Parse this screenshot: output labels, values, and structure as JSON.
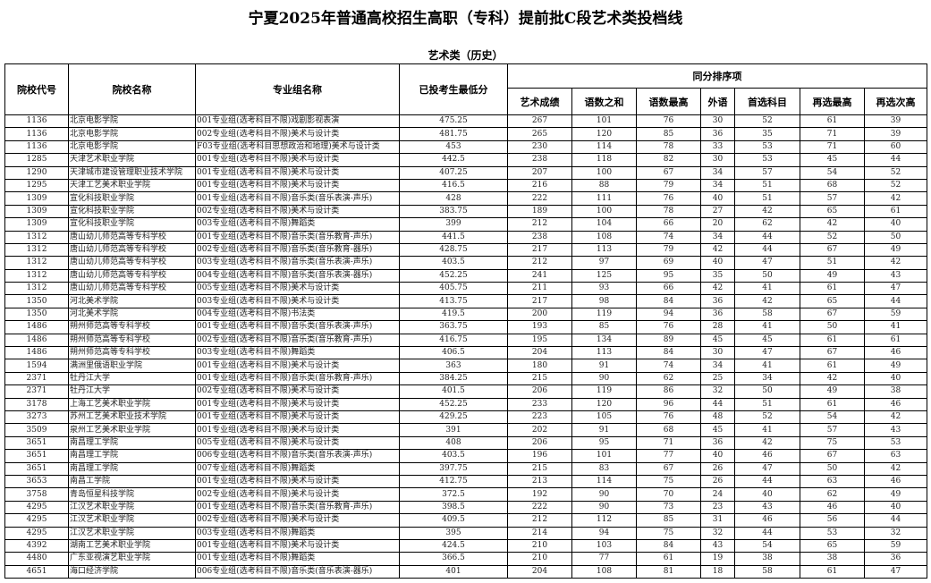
{
  "title": "宁夏2025年普通高校招生高职（专科）提前批C段艺术类投档线",
  "subtitle": "艺术类（历史）",
  "headers": {
    "code": "院校代号",
    "school": "院校名称",
    "group": "专业组名称",
    "min_score": "已投考生最低分",
    "tie_break": "同分排序项",
    "art": "艺术成绩",
    "yushu_sum": "语数之和",
    "yushu_max": "语数最高",
    "foreign": "外语",
    "first_subject": "首选科目",
    "reselect_max": "再选最高",
    "reselect_second": "再选次高"
  },
  "rows": [
    [
      "1136",
      "北京电影学院",
      "001专业组(选考科目不限)戏剧影视表演",
      "475.25",
      "267",
      "101",
      "76",
      "30",
      "52",
      "61",
      "39"
    ],
    [
      "1136",
      "北京电影学院",
      "002专业组(选考科目不限)美术与设计类",
      "481.75",
      "265",
      "120",
      "85",
      "36",
      "35",
      "71",
      "39"
    ],
    [
      "1136",
      "北京电影学院",
      "F03专业组(选考科目思想政治和地理)美术与设计类",
      "453",
      "230",
      "114",
      "78",
      "33",
      "53",
      "71",
      "60"
    ],
    [
      "1285",
      "天津艺术职业学院",
      "001专业组(选考科目不限)美术与设计类",
      "442.5",
      "238",
      "118",
      "82",
      "30",
      "53",
      "45",
      "44"
    ],
    [
      "1290",
      "天津城市建设管理职业技术学院",
      "001专业组(选考科目不限)美术与设计类",
      "407.25",
      "207",
      "100",
      "67",
      "34",
      "57",
      "54",
      "52"
    ],
    [
      "1295",
      "天津工艺美术职业学院",
      "001专业组(选考科目不限)美术与设计类",
      "416.5",
      "216",
      "88",
      "79",
      "34",
      "51",
      "68",
      "52"
    ],
    [
      "1309",
      "宣化科技职业学院",
      "001专业组(选考科目不限)音乐类(音乐表演-声乐)",
      "428",
      "222",
      "111",
      "76",
      "40",
      "51",
      "57",
      "42"
    ],
    [
      "1309",
      "宣化科技职业学院",
      "002专业组(选考科目不限)美术与设计类",
      "383.75",
      "189",
      "100",
      "78",
      "27",
      "42",
      "65",
      "61"
    ],
    [
      "1309",
      "宣化科技职业学院",
      "003专业组(选考科目不限)舞蹈类",
      "399",
      "212",
      "104",
      "66",
      "20",
      "62",
      "42",
      "40"
    ],
    [
      "1312",
      "唐山幼儿师范高等专科学校",
      "001专业组(选考科目不限)音乐类(音乐教育-声乐)",
      "441.5",
      "238",
      "108",
      "74",
      "34",
      "44",
      "52",
      "50"
    ],
    [
      "1312",
      "唐山幼儿师范高等专科学校",
      "002专业组(选考科目不限)音乐类(音乐教育-器乐)",
      "428.75",
      "217",
      "113",
      "79",
      "42",
      "44",
      "67",
      "49"
    ],
    [
      "1312",
      "唐山幼儿师范高等专科学校",
      "003专业组(选考科目不限)音乐类(音乐表演-声乐)",
      "403.5",
      "212",
      "97",
      "69",
      "40",
      "47",
      "51",
      "42"
    ],
    [
      "1312",
      "唐山幼儿师范高等专科学校",
      "004专业组(选考科目不限)音乐类(音乐表演-器乐)",
      "452.25",
      "241",
      "125",
      "95",
      "35",
      "50",
      "49",
      "43"
    ],
    [
      "1312",
      "唐山幼儿师范高等专科学校",
      "005专业组(选考科目不限)美术与设计类",
      "405.75",
      "211",
      "93",
      "66",
      "42",
      "41",
      "61",
      "47"
    ],
    [
      "1350",
      "河北美术学院",
      "003专业组(选考科目不限)美术与设计类",
      "413.75",
      "217",
      "98",
      "84",
      "36",
      "42",
      "65",
      "44"
    ],
    [
      "1350",
      "河北美术学院",
      "004专业组(选考科目不限)书法类",
      "419.5",
      "200",
      "119",
      "94",
      "36",
      "58",
      "67",
      "59"
    ],
    [
      "1486",
      "朔州师范高等专科学校",
      "001专业组(选考科目不限)音乐类(音乐表演-声乐)",
      "363.75",
      "193",
      "85",
      "76",
      "28",
      "41",
      "50",
      "41"
    ],
    [
      "1486",
      "朔州师范高等专科学校",
      "002专业组(选考科目不限)音乐类(音乐教育-声乐)",
      "416.75",
      "195",
      "134",
      "89",
      "45",
      "45",
      "61",
      "61"
    ],
    [
      "1486",
      "朔州师范高等专科学校",
      "003专业组(选考科目不限)舞蹈类",
      "406.5",
      "204",
      "113",
      "84",
      "30",
      "47",
      "67",
      "46"
    ],
    [
      "1594",
      "满洲里俄语职业学院",
      "001专业组(选考科目不限)美术与设计类",
      "363",
      "180",
      "91",
      "74",
      "34",
      "41",
      "61",
      "49"
    ],
    [
      "2371",
      "牡丹江大学",
      "001专业组(选考科目不限)音乐类(音乐教育-声乐)",
      "384.25",
      "215",
      "90",
      "62",
      "25",
      "34",
      "42",
      "40"
    ],
    [
      "2371",
      "牡丹江大学",
      "002专业组(选考科目不限)美术与设计类",
      "401.5",
      "206",
      "119",
      "86",
      "32",
      "50",
      "49",
      "38"
    ],
    [
      "3178",
      "上海工艺美术职业学院",
      "001专业组(选考科目不限)美术与设计类",
      "452.25",
      "233",
      "120",
      "96",
      "44",
      "51",
      "61",
      "46"
    ],
    [
      "3273",
      "苏州工艺美术职业技术学院",
      "001专业组(选考科目不限)美术与设计类",
      "429.25",
      "223",
      "105",
      "76",
      "48",
      "52",
      "54",
      "42"
    ],
    [
      "3509",
      "泉州工艺美术职业学院",
      "001专业组(选考科目不限)美术与设计类",
      "391",
      "202",
      "91",
      "68",
      "45",
      "41",
      "57",
      "43"
    ],
    [
      "3651",
      "南昌理工学院",
      "005专业组(选考科目不限)美术与设计类",
      "408",
      "206",
      "95",
      "71",
      "36",
      "42",
      "75",
      "53"
    ],
    [
      "3651",
      "南昌理工学院",
      "006专业组(选考科目不限)音乐类(音乐表演-声乐)",
      "403.5",
      "196",
      "101",
      "77",
      "40",
      "46",
      "67",
      "63"
    ],
    [
      "3651",
      "南昌理工学院",
      "007专业组(选考科目不限)舞蹈类",
      "397.75",
      "215",
      "83",
      "67",
      "26",
      "47",
      "50",
      "42"
    ],
    [
      "3653",
      "南昌工学院",
      "001专业组(选考科目不限)美术与设计类",
      "412.75",
      "213",
      "114",
      "75",
      "26",
      "44",
      "63",
      "46"
    ],
    [
      "3758",
      "青岛恒星科技学院",
      "002专业组(选考科目不限)美术与设计类",
      "372.5",
      "192",
      "90",
      "70",
      "24",
      "40",
      "62",
      "49"
    ],
    [
      "4295",
      "江汉艺术职业学院",
      "001专业组(选考科目不限)音乐类(音乐教育-声乐)",
      "398.5",
      "222",
      "90",
      "73",
      "23",
      "43",
      "46",
      "40"
    ],
    [
      "4295",
      "江汉艺术职业学院",
      "002专业组(选考科目不限)美术与设计类",
      "409.5",
      "212",
      "112",
      "85",
      "31",
      "46",
      "56",
      "44"
    ],
    [
      "4295",
      "江汉艺术职业学院",
      "003专业组(选考科目不限)舞蹈类",
      "395",
      "214",
      "94",
      "75",
      "32",
      "44",
      "53",
      "32"
    ],
    [
      "4392",
      "湖南工艺美术职业学院",
      "001专业组(选考科目不限)美术与设计类",
      "424.5",
      "210",
      "103",
      "84",
      "43",
      "54",
      "65",
      "59"
    ],
    [
      "4480",
      "广东亚视演艺职业学院",
      "001专业组(选考科目不限)舞蹈类",
      "366.5",
      "210",
      "77",
      "61",
      "19",
      "38",
      "38",
      "36"
    ],
    [
      "4651",
      "海口经济学院",
      "006专业组(选考科目不限)音乐类(音乐表演-器乐)",
      "401",
      "204",
      "108",
      "81",
      "18",
      "58",
      "61",
      "47"
    ]
  ]
}
